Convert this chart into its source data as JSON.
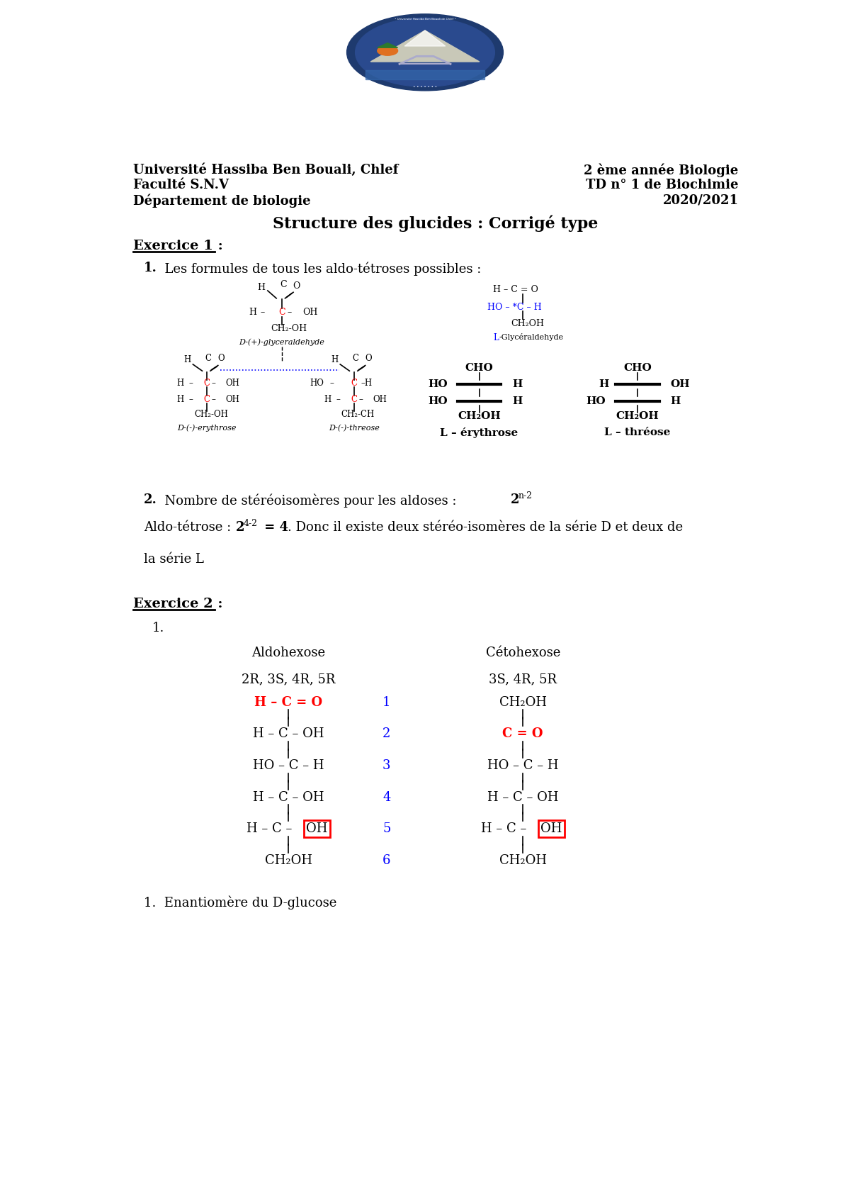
{
  "page_bg": "#ffffff",
  "header_left": [
    "Université Hassiba Ben Bouali, Chlef",
    "Faculté S.N.V",
    "Département de biologie"
  ],
  "header_right": [
    "2 ème année Biologie",
    "TD n° 1 de Biochimie",
    "2020/2021"
  ],
  "title": "Structure des glucides : Corrigé type",
  "ex1_title": "Exercice 1 :",
  "ex1_q1_num": "1.",
  "ex1_q1_text": "  Les formules de tous les aldo-tétroses possibles :",
  "ex1_q2_num": "2.",
  "ex1_q2_text": "  Nombre de stéréoisomères pour les aldoses : ",
  "ex1_q2_base": "2",
  "ex1_q2_sup": "n-2",
  "ex1_q2b_text": "Aldo-tétrose : ",
  "ex1_q2b_base": "2",
  "ex1_q2b_sup": "4-2",
  "ex1_q2b_eq": " = 4",
  "ex1_q2b_rest": ". Donc il existe deux stéréo-isomères de la série D et deux de",
  "ex1_q2c": "la série L",
  "ex2_title": "Exercice 2 :",
  "ex2_q1": "1.",
  "ex2_label_aldo": "Aldohexose",
  "ex2_config_aldo": "2R, 3S, 4R, 5R",
  "ex2_label_ceto": "Cétohexose",
  "ex2_config_ceto": "3S, 4R, 5R",
  "ex2_note": "1.  Enantiomère du D-glucose",
  "logo_color_outer": "#1e3a6e",
  "logo_color_inner": "#2a4a8e",
  "logo_mountain": "#c8c8b8",
  "logo_orange": "#e07020",
  "logo_water": "#3366aa"
}
